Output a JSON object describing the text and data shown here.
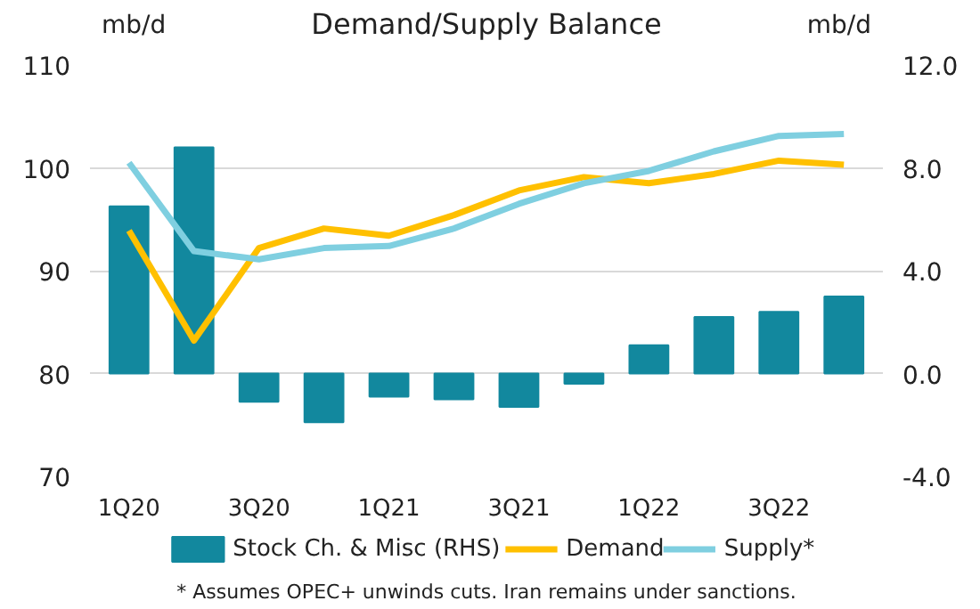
{
  "chart_data": {
    "type": "line",
    "title": "Demand/Supply Balance",
    "ylabel": "mb/d",
    "y2label": "mb/d",
    "categories": [
      "1Q20",
      null,
      "3Q20",
      null,
      "1Q21",
      null,
      "3Q21",
      null,
      "1Q22",
      null,
      "3Q22",
      null
    ],
    "series": [
      {
        "name": "Stock Ch. & Misc (RHS)",
        "type": "bar",
        "axis": "y2",
        "color": "#12889e",
        "values": [
          6.5,
          8.8,
          -1.1,
          -1.9,
          -0.9,
          -1.0,
          -1.3,
          -0.4,
          1.1,
          2.2,
          2.4,
          3.0
        ]
      },
      {
        "name": "Demand",
        "color": "#ffc000",
        "values": [
          93.9,
          83.2,
          92.2,
          94.1,
          93.4,
          95.4,
          97.8,
          99.1,
          98.5,
          99.4,
          100.7,
          100.3
        ]
      },
      {
        "name": "Supply*",
        "color": "#7fcfe0",
        "values": [
          100.5,
          91.9,
          91.1,
          92.2,
          92.4,
          94.1,
          96.5,
          98.5,
          99.7,
          101.6,
          103.1,
          103.3
        ]
      }
    ],
    "ylim": [
      70,
      110
    ],
    "yticks": [
      70,
      80,
      90,
      100,
      110
    ],
    "y2lim": [
      -4,
      12
    ],
    "y2ticks": [
      {
        "value": -4,
        "label": "-4.0"
      },
      {
        "value": 0,
        "label": "0.0"
      },
      {
        "value": 4,
        "label": "4.0"
      },
      {
        "value": 8,
        "label": "8.0"
      },
      {
        "value": 12,
        "label": "12.0"
      }
    ],
    "grid": "y",
    "legend": "bottom",
    "marker": "none",
    "line_style": "solid",
    "annotations": [
      "* Assumes OPEC+ unwinds cuts. Iran remains under sanctions."
    ]
  }
}
